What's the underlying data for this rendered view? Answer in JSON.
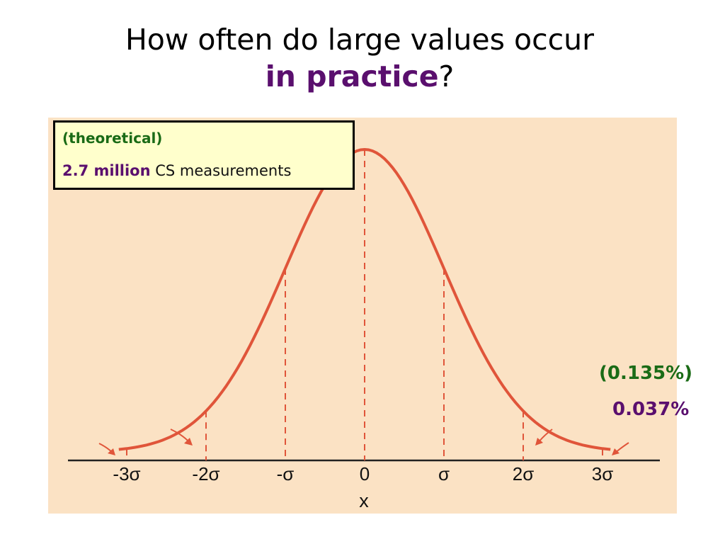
{
  "title": {
    "line1": "How often do large values occur",
    "line2_highlight": "in practice",
    "line2_suffix": "?"
  },
  "info_box": {
    "theoretical_label": "(theoretical)",
    "count": "2.7 million",
    "count_suffix": "CS measurements"
  },
  "percentages": {
    "theoretical": "(0.135%)",
    "actual": "0.037%"
  },
  "axis": {
    "x_title": "x",
    "ticks": [
      "-3σ",
      "-2σ",
      "-σ",
      "0",
      "σ",
      "2σ",
      "3σ"
    ]
  },
  "colors": {
    "curve": "#e0553a",
    "background": "#fbe2c4",
    "box_fill": "#ffffcc",
    "green": "#1a6b16",
    "purple": "#5a0f6e"
  }
}
